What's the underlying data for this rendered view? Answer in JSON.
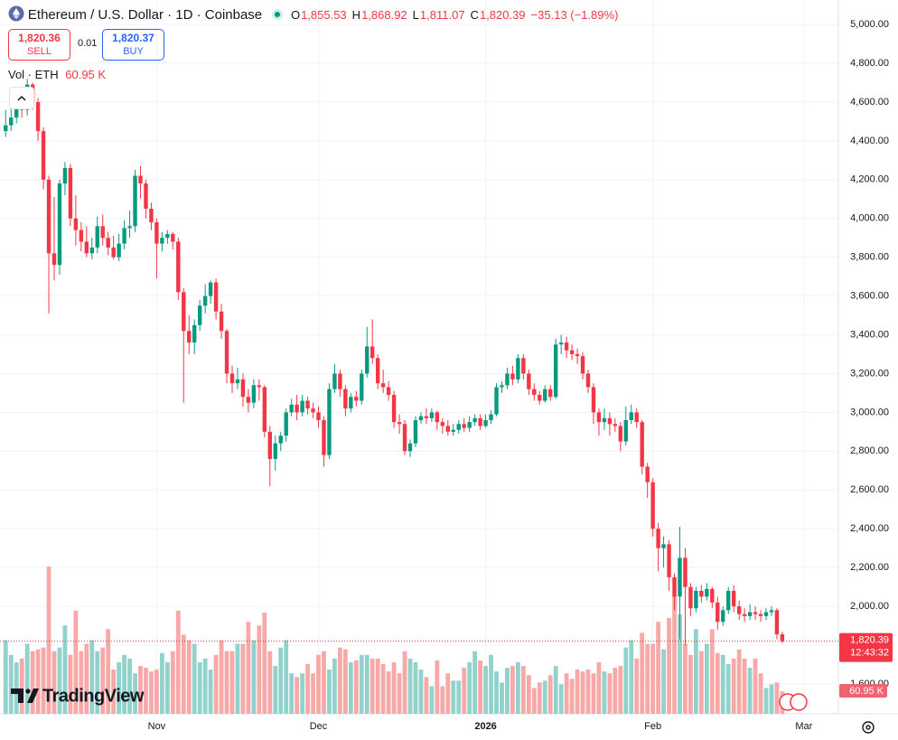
{
  "chart_data": {
    "type": "candlestick",
    "title": "Ethereum / U.S. Dollar · 1D · Coinbase",
    "ohlc_header": [
      {
        "label": "O",
        "value": "1,855.53"
      },
      {
        "label": "H",
        "value": "1,868.92"
      },
      {
        "label": "L",
        "value": "1,811.07"
      },
      {
        "label": "C",
        "value": "1,820.39"
      }
    ],
    "change": "−35.13 (−1.89%)",
    "sell": {
      "price": "1,820.36",
      "label": "SELL"
    },
    "spread": "0.01",
    "buy": {
      "price": "1,820.37",
      "label": "BUY"
    },
    "volume_title": "Vol · ETH",
    "volume_label": "60.95 K",
    "price_label": "1,820.39",
    "countdown": "12:43:32",
    "logo": "TradingView",
    "up_color": "#089981",
    "down_color": "#f23645",
    "up_volume_color": "#92d2cc",
    "down_volume_color": "#f7a9a7",
    "grid": true,
    "ylim": [
      1446,
      5126
    ],
    "yticks": [
      {
        "value": 1600,
        "label": "1,600.00"
      },
      {
        "value": 1800,
        "label": "1,800.00"
      },
      {
        "value": 2000,
        "label": "2,000.00"
      },
      {
        "value": 2200,
        "label": "2,200.00"
      },
      {
        "value": 2400,
        "label": "2,400.00"
      },
      {
        "value": 2600,
        "label": "2,600.00"
      },
      {
        "value": 2800,
        "label": "2,800.00"
      },
      {
        "value": 3000,
        "label": "3,000.00"
      },
      {
        "value": 3200,
        "label": "3,200.00"
      },
      {
        "value": 3400,
        "label": "3,400.00"
      },
      {
        "value": 3600,
        "label": "3,600.00"
      },
      {
        "value": 3800,
        "label": "3,800.00"
      },
      {
        "value": 4000,
        "label": "4,000.00"
      },
      {
        "value": 4200,
        "label": "4,200.00"
      },
      {
        "value": 4400,
        "label": "4,400.00"
      },
      {
        "value": 4600,
        "label": "4,600.00"
      },
      {
        "value": 4800,
        "label": "4,800.00"
      },
      {
        "value": 5000,
        "label": "5,000.00"
      }
    ],
    "xlim": [
      -1.05,
      154.4
    ],
    "xticks": [
      {
        "value": 28,
        "label": "Nov"
      },
      {
        "value": 58,
        "label": "Dec"
      },
      {
        "value": 89,
        "label": "2026"
      },
      {
        "value": 120,
        "label": "Feb"
      },
      {
        "value": 148,
        "label": "Mar"
      }
    ],
    "ohlc": [
      [
        4450,
        4560,
        4420,
        4480
      ],
      [
        4480,
        4570,
        4450,
        4520
      ],
      [
        4520,
        4640,
        4490,
        4600
      ],
      [
        4600,
        4650,
        4520,
        4560
      ],
      [
        4560,
        4720,
        4530,
        4690
      ],
      [
        4690,
        4700,
        4560,
        4600
      ],
      [
        4600,
        4620,
        4400,
        4450
      ],
      [
        4450,
        4470,
        4150,
        4200
      ],
      [
        4200,
        4220,
        3510,
        3820
      ],
      [
        3820,
        4110,
        3680,
        3760
      ],
      [
        3760,
        4200,
        3710,
        4180
      ],
      [
        4180,
        4290,
        4120,
        4260
      ],
      [
        4260,
        4280,
        3960,
        4000
      ],
      [
        4000,
        4120,
        3860,
        3940
      ],
      [
        3940,
        3980,
        3830,
        3880
      ],
      [
        3880,
        3960,
        3800,
        3820
      ],
      [
        3820,
        3900,
        3790,
        3850
      ],
      [
        3850,
        4010,
        3820,
        3960
      ],
      [
        3960,
        4020,
        3860,
        3900
      ],
      [
        3900,
        3930,
        3810,
        3850
      ],
      [
        3850,
        3910,
        3790,
        3800
      ],
      [
        3800,
        3920,
        3780,
        3870
      ],
      [
        3870,
        3990,
        3840,
        3950
      ],
      [
        3950,
        4040,
        3900,
        3960
      ],
      [
        3960,
        4250,
        3930,
        4220
      ],
      [
        4220,
        4270,
        4100,
        4180
      ],
      [
        4180,
        4200,
        4000,
        4050
      ],
      [
        4050,
        4080,
        3940,
        3980
      ],
      [
        3980,
        4000,
        3690,
        3870
      ],
      [
        3870,
        3930,
        3830,
        3900
      ],
      [
        3900,
        3940,
        3870,
        3920
      ],
      [
        3920,
        3930,
        3840,
        3880
      ],
      [
        3880,
        3900,
        3580,
        3620
      ],
      [
        3620,
        3640,
        3050,
        3420
      ],
      [
        3420,
        3500,
        3300,
        3360
      ],
      [
        3360,
        3480,
        3300,
        3450
      ],
      [
        3450,
        3580,
        3420,
        3550
      ],
      [
        3550,
        3660,
        3510,
        3600
      ],
      [
        3600,
        3680,
        3560,
        3670
      ],
      [
        3670,
        3690,
        3480,
        3520
      ],
      [
        3520,
        3560,
        3380,
        3420
      ],
      [
        3420,
        3430,
        3150,
        3200
      ],
      [
        3200,
        3240,
        3100,
        3150
      ],
      [
        3150,
        3230,
        3120,
        3170
      ],
      [
        3170,
        3200,
        3030,
        3080
      ],
      [
        3080,
        3120,
        3000,
        3050
      ],
      [
        3050,
        3170,
        3020,
        3140
      ],
      [
        3140,
        3170,
        3060,
        3130
      ],
      [
        3130,
        3140,
        2870,
        2900
      ],
      [
        2900,
        2930,
        2620,
        2760
      ],
      [
        2760,
        2880,
        2700,
        2840
      ],
      [
        2840,
        2900,
        2800,
        2880
      ],
      [
        2880,
        3020,
        2850,
        3000
      ],
      [
        3000,
        3070,
        2980,
        3040
      ],
      [
        3040,
        3090,
        2960,
        3000
      ],
      [
        3000,
        3090,
        2980,
        3060
      ],
      [
        3060,
        3080,
        2990,
        3020
      ],
      [
        3020,
        3050,
        2970,
        3000
      ],
      [
        3000,
        3030,
        2920,
        2960
      ],
      [
        2960,
        2980,
        2720,
        2780
      ],
      [
        2780,
        3150,
        2760,
        3120
      ],
      [
        3120,
        3250,
        3100,
        3200
      ],
      [
        3200,
        3220,
        3080,
        3120
      ],
      [
        3120,
        3140,
        2980,
        3020
      ],
      [
        3020,
        3100,
        3000,
        3080
      ],
      [
        3080,
        3110,
        3030,
        3060
      ],
      [
        3060,
        3220,
        3040,
        3200
      ],
      [
        3200,
        3440,
        3180,
        3340
      ],
      [
        3340,
        3480,
        3250,
        3280
      ],
      [
        3280,
        3300,
        3120,
        3150
      ],
      [
        3150,
        3220,
        3100,
        3130
      ],
      [
        3130,
        3160,
        3060,
        3090
      ],
      [
        3090,
        3110,
        2920,
        2950
      ],
      [
        2950,
        2990,
        2890,
        2940
      ],
      [
        2940,
        2960,
        2780,
        2800
      ],
      [
        2800,
        2860,
        2770,
        2840
      ],
      [
        2840,
        2980,
        2820,
        2960
      ],
      [
        2960,
        3000,
        2940,
        2980
      ],
      [
        2980,
        3020,
        2940,
        2970
      ],
      [
        2970,
        3020,
        2950,
        3000
      ],
      [
        3000,
        3010,
        2910,
        2950
      ],
      [
        2950,
        2970,
        2890,
        2930
      ],
      [
        2930,
        2960,
        2880,
        2900
      ],
      [
        2900,
        2940,
        2880,
        2910
      ],
      [
        2910,
        2960,
        2890,
        2940
      ],
      [
        2940,
        2970,
        2900,
        2920
      ],
      [
        2920,
        2980,
        2900,
        2950
      ],
      [
        2950,
        2990,
        2930,
        2970
      ],
      [
        2970,
        2990,
        2910,
        2930
      ],
      [
        2930,
        2990,
        2920,
        2960
      ],
      [
        2960,
        3010,
        2940,
        2990
      ],
      [
        2990,
        3150,
        2980,
        3130
      ],
      [
        3130,
        3160,
        3100,
        3140
      ],
      [
        3140,
        3230,
        3120,
        3200
      ],
      [
        3200,
        3240,
        3140,
        3170
      ],
      [
        3170,
        3300,
        3150,
        3280
      ],
      [
        3280,
        3300,
        3170,
        3200
      ],
      [
        3200,
        3220,
        3090,
        3120
      ],
      [
        3120,
        3150,
        3060,
        3090
      ],
      [
        3090,
        3110,
        3040,
        3060
      ],
      [
        3060,
        3140,
        3050,
        3120
      ],
      [
        3120,
        3140,
        3060,
        3080
      ],
      [
        3080,
        3380,
        3070,
        3350
      ],
      [
        3350,
        3400,
        3300,
        3360
      ],
      [
        3360,
        3390,
        3280,
        3320
      ],
      [
        3320,
        3350,
        3270,
        3300
      ],
      [
        3300,
        3330,
        3250,
        3290
      ],
      [
        3290,
        3310,
        3170,
        3200
      ],
      [
        3200,
        3220,
        3100,
        3130
      ],
      [
        3130,
        3150,
        2940,
        3000
      ],
      [
        3000,
        3020,
        2880,
        2950
      ],
      [
        2950,
        3020,
        2910,
        2970
      ],
      [
        2970,
        3000,
        2880,
        2940
      ],
      [
        2940,
        2970,
        2900,
        2930
      ],
      [
        2930,
        2950,
        2800,
        2850
      ],
      [
        2850,
        3030,
        2830,
        2960
      ],
      [
        2960,
        3040,
        2940,
        3000
      ],
      [
        3000,
        3020,
        2920,
        2950
      ],
      [
        2950,
        2960,
        2680,
        2720
      ],
      [
        2720,
        2740,
        2560,
        2640
      ],
      [
        2640,
        2660,
        2360,
        2400
      ],
      [
        2400,
        2430,
        2180,
        2300
      ],
      [
        2300,
        2360,
        2200,
        2320
      ],
      [
        2320,
        2340,
        2080,
        2150
      ],
      [
        2150,
        2170,
        1980,
        2050
      ],
      [
        2050,
        2410,
        1830,
        2250
      ],
      [
        2250,
        2300,
        1800,
        2100
      ],
      [
        2100,
        2120,
        1950,
        1990
      ],
      [
        1990,
        2100,
        1970,
        2080
      ],
      [
        2080,
        2110,
        2020,
        2050
      ],
      [
        2050,
        2120,
        2030,
        2090
      ],
      [
        2090,
        2100,
        1990,
        2020
      ],
      [
        2020,
        2050,
        1880,
        1920
      ],
      [
        1920,
        2000,
        1900,
        1980
      ],
      [
        1980,
        2100,
        1960,
        2080
      ],
      [
        2080,
        2110,
        1970,
        2000
      ],
      [
        2000,
        2030,
        1930,
        1960
      ],
      [
        1960,
        1990,
        1920,
        1950
      ],
      [
        1950,
        2010,
        1930,
        1970
      ],
      [
        1970,
        2000,
        1930,
        1960
      ],
      [
        1960,
        1980,
        1920,
        1950
      ],
      [
        1950,
        1990,
        1930,
        1970
      ],
      [
        1970,
        2000,
        1950,
        1980
      ],
      [
        1980,
        1990,
        1830,
        1855.53
      ],
      [
        1855.53,
        1868.92,
        1811.07,
        1820.39
      ]
    ],
    "volume": [
      200,
      160,
      140,
      150,
      190,
      170,
      175,
      180,
      400,
      170,
      180,
      240,
      160,
      280,
      170,
      190,
      200,
      170,
      180,
      230,
      120,
      140,
      160,
      150,
      110,
      130,
      125,
      115,
      120,
      165,
      140,
      170,
      280,
      215,
      200,
      190,
      140,
      150,
      120,
      160,
      200,
      170,
      170,
      190,
      190,
      250,
      200,
      240,
      275,
      170,
      130,
      180,
      200,
      110,
      100,
      110,
      135,
      110,
      160,
      170,
      120,
      150,
      180,
      175,
      140,
      145,
      160,
      160,
      150,
      150,
      135,
      115,
      140,
      110,
      170,
      150,
      140,
      120,
      100,
      75,
      145,
      75,
      110,
      90,
      90,
      125,
      140,
      170,
      145,
      130,
      160,
      115,
      85,
      125,
      130,
      140,
      130,
      105,
      70,
      85,
      90,
      105,
      130,
      80,
      110,
      95,
      120,
      115,
      120,
      110,
      140,
      115,
      110,
      125,
      130,
      180,
      200,
      150,
      220,
      190,
      190,
      250,
      175,
      260,
      320,
      270,
      190,
      160,
      230,
      170,
      190,
      230,
      165,
      160,
      135,
      150,
      175,
      150,
      125,
      150,
      110,
      70,
      80,
      85,
      60.95
    ]
  }
}
